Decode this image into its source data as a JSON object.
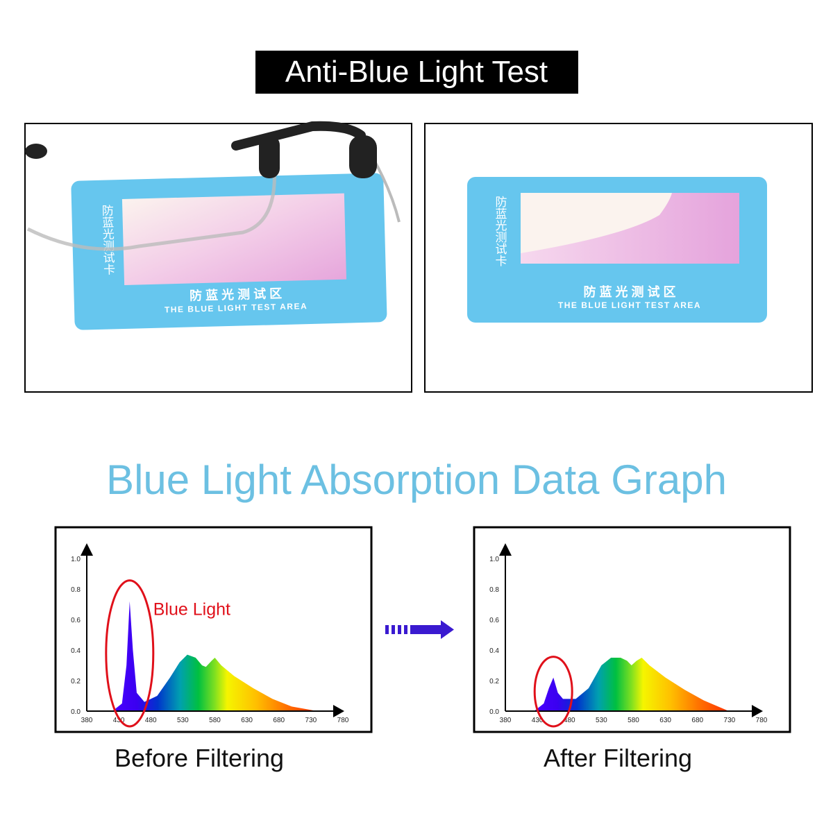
{
  "header": {
    "title": "Anti-Blue Light Test"
  },
  "photos": [
    {
      "card_label": "防蓝光测试卡",
      "area_label": "防 蓝 光 测 试 区",
      "area_label_en": "THE BLUE LIGHT TEST AREA"
    },
    {
      "card_label": "防蓝光测试卡",
      "area_label": "防 蓝 光 测 试 区",
      "area_label_en": "THE BLUE LIGHT TEST AREA"
    }
  ],
  "section_title": "Blue Light Absorption Data Graph",
  "chart_data": [
    {
      "type": "area",
      "caption": "Before Filtering",
      "annotation": "Blue Light",
      "x": [
        420,
        435,
        442,
        447,
        452,
        458,
        470,
        490,
        510,
        525,
        537,
        550,
        560,
        566,
        575,
        580,
        590,
        610,
        640,
        670,
        700,
        740
      ],
      "values": [
        0,
        0.05,
        0.3,
        0.72,
        0.4,
        0.12,
        0.06,
        0.1,
        0.22,
        0.32,
        0.37,
        0.35,
        0.3,
        0.29,
        0.33,
        0.35,
        0.3,
        0.23,
        0.15,
        0.08,
        0.03,
        0
      ],
      "xlim": [
        380,
        780
      ],
      "ylim": [
        0,
        1
      ],
      "xticks": [
        380,
        430,
        480,
        530,
        580,
        630,
        680,
        730,
        780
      ],
      "yticks": [
        {
          "value": 0,
          "label": "0.0"
        },
        {
          "value": 0.2,
          "label": "0.2"
        },
        {
          "value": 0.4,
          "label": "0.4"
        },
        {
          "value": 0.6,
          "label": "0.6"
        },
        {
          "value": 0.8,
          "label": "0.8"
        },
        {
          "value": 1,
          "label": "1.0"
        }
      ]
    },
    {
      "type": "area",
      "caption": "After Filtering",
      "x": [
        425,
        440,
        448,
        455,
        462,
        470,
        490,
        510,
        530,
        545,
        560,
        570,
        577,
        585,
        593,
        605,
        630,
        660,
        690,
        729
      ],
      "values": [
        0,
        0.05,
        0.15,
        0.22,
        0.12,
        0.08,
        0.08,
        0.15,
        0.3,
        0.35,
        0.35,
        0.33,
        0.3,
        0.33,
        0.35,
        0.3,
        0.22,
        0.14,
        0.07,
        0
      ],
      "xlim": [
        380,
        780
      ],
      "ylim": [
        0,
        1
      ],
      "xticks": [
        380,
        430,
        480,
        530,
        580,
        630,
        680,
        730,
        780
      ],
      "yticks": [
        {
          "value": 0,
          "label": "0.0"
        },
        {
          "value": 0.2,
          "label": "0.2"
        },
        {
          "value": 0.4,
          "label": "0.4"
        },
        {
          "value": 0.6,
          "label": "0.6"
        },
        {
          "value": 0.8,
          "label": "0.8"
        },
        {
          "value": 1,
          "label": "1.0"
        }
      ]
    }
  ]
}
